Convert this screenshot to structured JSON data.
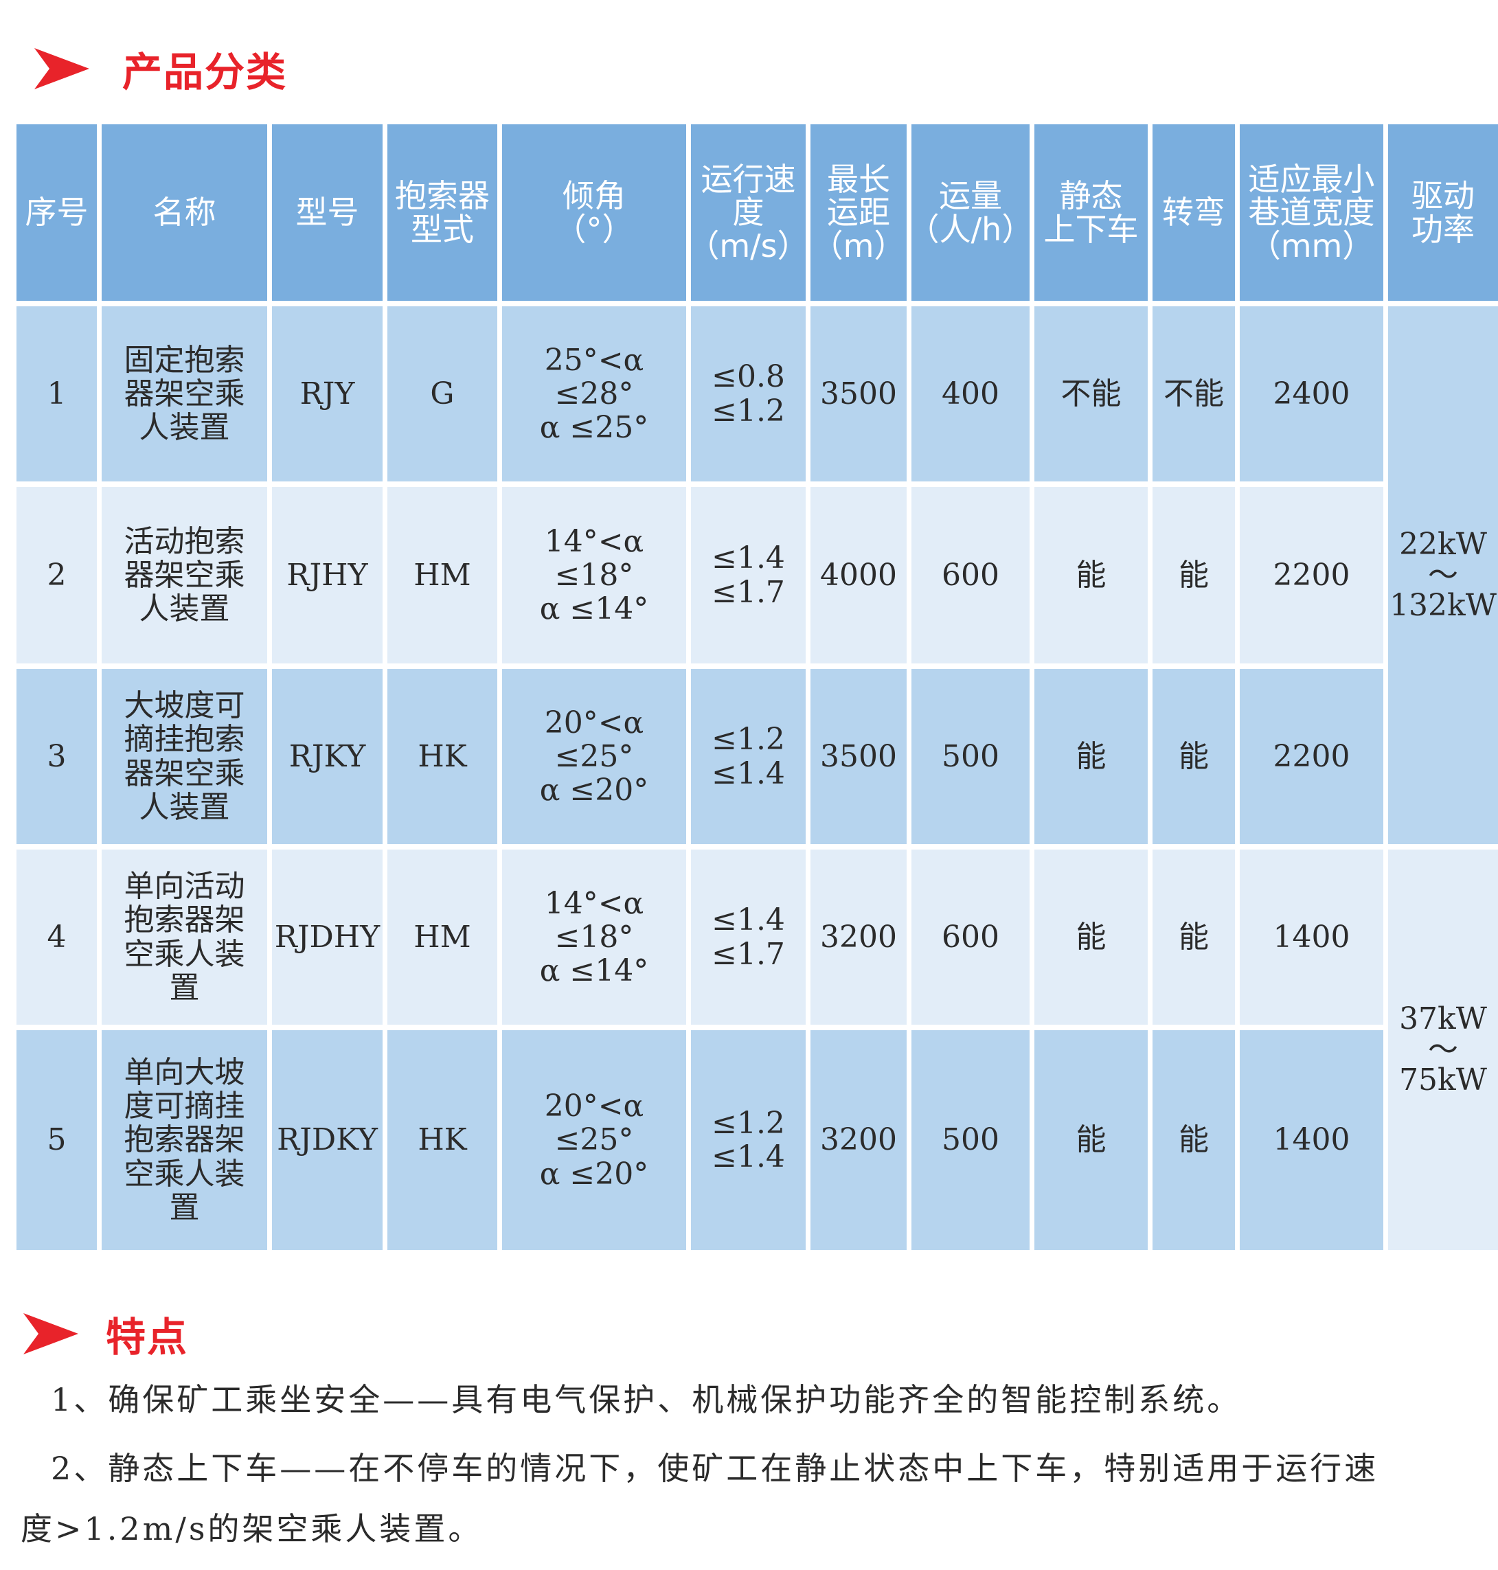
{
  "section1": {
    "title": "产品分类"
  },
  "table": {
    "headers": {
      "no": [
        "序号"
      ],
      "name": [
        "名称"
      ],
      "model": [
        "型号"
      ],
      "clamp": [
        "抱索器",
        "型式"
      ],
      "angle": [
        "倾角",
        "（°）"
      ],
      "speed": [
        "运行速",
        "度",
        "（m/s）"
      ],
      "distance": [
        "最长",
        "运距",
        "（m）"
      ],
      "capacity": [
        "运量",
        "（人/h）"
      ],
      "static": [
        "静态",
        "上下车"
      ],
      "turn": [
        "转弯"
      ],
      "width": [
        "适应最小",
        "巷道宽度",
        "（mm）"
      ],
      "power": [
        "驱动",
        "功率"
      ]
    },
    "rows": [
      {
        "no": "1",
        "name": [
          "固定抱索",
          "器架空乘",
          "人装置"
        ],
        "model": "RJY",
        "clamp": "G",
        "angle": [
          "25°<α ≤28°",
          "α ≤25°"
        ],
        "speed": [
          "≤0.8",
          "≤1.2"
        ],
        "distance": "3500",
        "capacity": "400",
        "static": "不能",
        "turn": "不能",
        "width": "2400"
      },
      {
        "no": "2",
        "name": [
          "活动抱索",
          "器架空乘",
          "人装置"
        ],
        "model": "RJHY",
        "clamp": "HM",
        "angle": [
          "14°<α ≤18°",
          "α ≤14°"
        ],
        "speed": [
          "≤1.4",
          "≤1.7"
        ],
        "distance": "4000",
        "capacity": "600",
        "static": "能",
        "turn": "能",
        "width": "2200"
      },
      {
        "no": "3",
        "name": [
          "大坡度可",
          "摘挂抱索",
          "器架空乘",
          "人装置"
        ],
        "model": "RJKY",
        "clamp": "HK",
        "angle": [
          "20°<α ≤25°",
          "α ≤20°"
        ],
        "speed": [
          "≤1.2",
          "≤1.4"
        ],
        "distance": "3500",
        "capacity": "500",
        "static": "能",
        "turn": "能",
        "width": "2200"
      },
      {
        "no": "4",
        "name": [
          "单向活动",
          "抱索器架",
          "空乘人装",
          "置"
        ],
        "model": "RJDHY",
        "clamp": "HM",
        "angle": [
          "14°<α ≤18°",
          "α ≤14°"
        ],
        "speed": [
          "≤1.4",
          "≤1.7"
        ],
        "distance": "3200",
        "capacity": "600",
        "static": "能",
        "turn": "能",
        "width": "1400"
      },
      {
        "no": "5",
        "name": [
          "单向大坡",
          "度可摘挂",
          "抱索器架",
          "空乘人装",
          "置"
        ],
        "model": "RJDKY",
        "clamp": "HK",
        "angle": [
          "20°<α ≤25°",
          "α ≤20°"
        ],
        "speed": [
          "≤1.2",
          "≤1.4"
        ],
        "distance": "3200",
        "capacity": "500",
        "static": "能",
        "turn": "能",
        "width": "1400"
      }
    ],
    "power_groups": [
      {
        "from": "22kW",
        "sep": "～",
        "to": "132kW"
      },
      {
        "from": "37kW",
        "sep": "～",
        "to": "75kW"
      }
    ]
  },
  "section2": {
    "title": "特点",
    "lines": [
      "1、确保矿工乘坐安全——具有电气保护、机械保护功能齐全的智能控制系统。",
      "2、静态上下车——在不停车的情况下，使矿工在静止状态中上下车，特别适用于运行速",
      "度>1.2m/s的架空乘人装置。"
    ]
  },
  "colors": {
    "accent": "#e8232a",
    "header_bg": "#7aaede",
    "row_dark": "#b6d4ee",
    "row_light": "#e2edf8"
  },
  "icons": {
    "section_marker": "red-arrow-icon"
  }
}
